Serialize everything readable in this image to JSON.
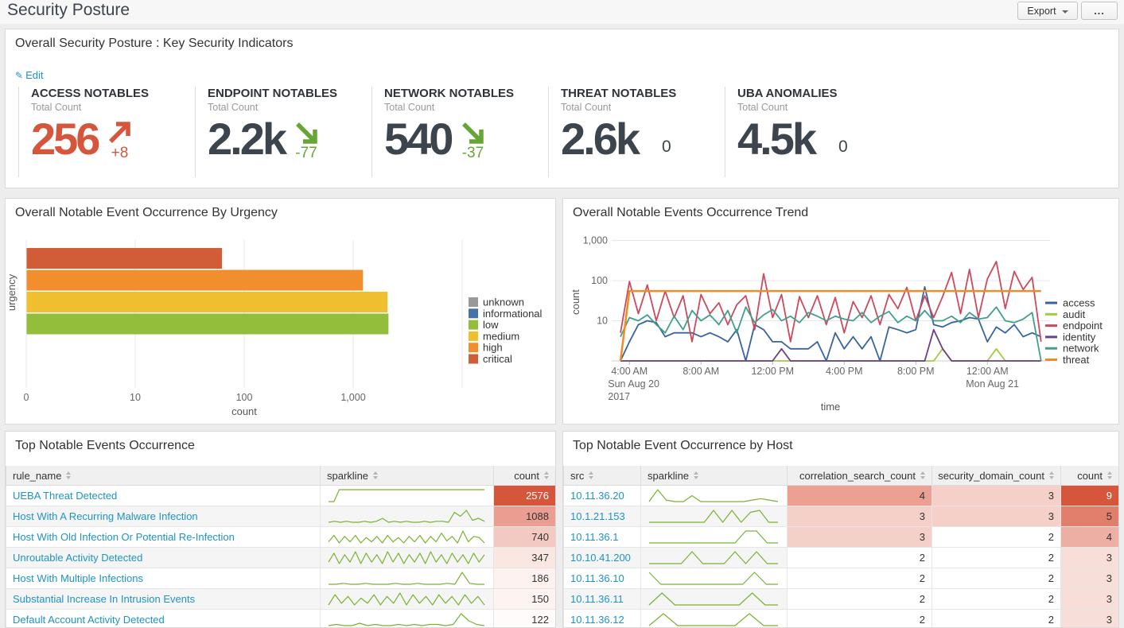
{
  "page": {
    "title": "Security Posture",
    "export_label": "Export",
    "more_label": "..."
  },
  "kpi_panel": {
    "title": "Overall Security Posture : Key Security Indicators",
    "edit_label": "Edit",
    "kpis": [
      {
        "label": "ACCESS NOTABLES",
        "sublabel": "Total Count",
        "value": "256",
        "value_color": "#d6563c",
        "delta": "+8",
        "trend": "up",
        "trend_color": "#d6563c"
      },
      {
        "label": "ENDPOINT NOTABLES",
        "sublabel": "Total Count",
        "value": "2.2k",
        "value_color": "#3c444d",
        "delta": "-77",
        "trend": "down",
        "trend_color": "#65a637"
      },
      {
        "label": "NETWORK NOTABLES",
        "sublabel": "Total Count",
        "value": "540",
        "value_color": "#3c444d",
        "delta": "-37",
        "trend": "down",
        "trend_color": "#65a637"
      },
      {
        "label": "THREAT NOTABLES",
        "sublabel": "Total Count",
        "value": "2.6k",
        "value_color": "#3c444d",
        "delta": "0",
        "trend": "none",
        "trend_color": "#3c444d"
      },
      {
        "label": "UBA ANOMALIES",
        "sublabel": "Total Count",
        "value": "4.5k",
        "value_color": "#3c444d",
        "delta": "0",
        "trend": "none",
        "trend_color": "#3c444d"
      }
    ]
  },
  "chart_data": [
    {
      "id": "urgency_bar",
      "type": "bar",
      "orientation": "horizontal",
      "title": "Overall Notable Event Occurrence By Urgency",
      "xlabel": "count",
      "ylabel": "urgency",
      "x_scale": "log",
      "x_ticks": [
        {
          "label": "0",
          "decade": 0
        },
        {
          "label": "10",
          "decade": 1
        },
        {
          "label": "100",
          "decade": 2
        },
        {
          "label": "1,000",
          "decade": 3
        }
      ],
      "bars_order": [
        "critical",
        "high",
        "medium",
        "low"
      ],
      "series": [
        {
          "name": "unknown",
          "value": 0,
          "color": "#999999"
        },
        {
          "name": "informational",
          "value": 0,
          "color": "#4573a7"
        },
        {
          "name": "low",
          "value": 2090,
          "color": "#93be3c"
        },
        {
          "name": "medium",
          "value": 2050,
          "color": "#f0bf30"
        },
        {
          "name": "high",
          "value": 1220,
          "color": "#f18f2e"
        },
        {
          "name": "critical",
          "value": 62,
          "color": "#d05c38"
        }
      ]
    },
    {
      "id": "trend",
      "type": "line",
      "title": "Overall Notable Events Occurrence Trend",
      "xlabel": "time",
      "ylabel": "count",
      "y_scale": "log",
      "y_ticks": [
        {
          "label": "10",
          "value": 10
        },
        {
          "label": "100",
          "value": 100
        },
        {
          "label": "1,000",
          "value": 1000
        }
      ],
      "x_ticks": [
        {
          "label": "4:00 AM",
          "sub": [
            "Sun Aug 20",
            "2017"
          ],
          "index": 1
        },
        {
          "label": "8:00 AM",
          "sub": [],
          "index": 9
        },
        {
          "label": "12:00 PM",
          "sub": [],
          "index": 17
        },
        {
          "label": "4:00 PM",
          "sub": [],
          "index": 25
        },
        {
          "label": "8:00 PM",
          "sub": [],
          "index": 33
        },
        {
          "label": "12:00 AM",
          "sub": [
            "Mon Aug 21"
          ],
          "index": 41
        }
      ],
      "series": [
        {
          "name": "access",
          "color": "#3863a0",
          "values": [
            1,
            3,
            8,
            10,
            9,
            4,
            5,
            5,
            5,
            4,
            5,
            4,
            3,
            6,
            1,
            8,
            6,
            3,
            3,
            2,
            2,
            2,
            3,
            1,
            5,
            2,
            4,
            2,
            4,
            1,
            7,
            6,
            5,
            6,
            70,
            8,
            7,
            9,
            10,
            12,
            11,
            3,
            7,
            5,
            8,
            4,
            5,
            4
          ]
        },
        {
          "name": "audit",
          "color": "#a2cc3e",
          "values": [
            1,
            1,
            1,
            1,
            1,
            1,
            1,
            1,
            1,
            1,
            1,
            1,
            1,
            1,
            1,
            1,
            1,
            1,
            1,
            1,
            1,
            1,
            1,
            1,
            1,
            1,
            1,
            1,
            1,
            1,
            1,
            1,
            1,
            1,
            1,
            1,
            2,
            1,
            1,
            1,
            1,
            1,
            2,
            1,
            1,
            1,
            1,
            1
          ]
        },
        {
          "name": "endpoint",
          "color": "#cc4a5d",
          "values": [
            5,
            95,
            15,
            78,
            10,
            55,
            12,
            42,
            3,
            45,
            15,
            28,
            8,
            25,
            42,
            6,
            148,
            12,
            45,
            3,
            40,
            12,
            42,
            8,
            38,
            5,
            30,
            12,
            42,
            8,
            45,
            20,
            68,
            10,
            42,
            12,
            40,
            160,
            15,
            190,
            12,
            110,
            300,
            20,
            170,
            60,
            120,
            3
          ]
        },
        {
          "name": "identity",
          "color": "#6b4086",
          "values": [
            1,
            1,
            1,
            1,
            1,
            1,
            1,
            1,
            1,
            1,
            1,
            1,
            1,
            1,
            1,
            1,
            1,
            1,
            2,
            1,
            1,
            1,
            1,
            1,
            1,
            1,
            1,
            1,
            1,
            1,
            1,
            1,
            1,
            1,
            1,
            6,
            2,
            1,
            1,
            1,
            1,
            1,
            1,
            1,
            1,
            1,
            1,
            1
          ]
        },
        {
          "name": "network",
          "color": "#3fa08c",
          "values": [
            4,
            12,
            10,
            14,
            8,
            5,
            13,
            6,
            18,
            10,
            14,
            8,
            18,
            5,
            22,
            9,
            14,
            19,
            10,
            13,
            9,
            16,
            13,
            10,
            13,
            11,
            10,
            16,
            9,
            13,
            17,
            9,
            13,
            10,
            18,
            10,
            10,
            13,
            9,
            16,
            11,
            12,
            22,
            10,
            9,
            11,
            16,
            1
          ]
        },
        {
          "name": "threat",
          "color": "#ef8d24",
          "values": [
            1,
            55,
            55,
            55,
            55,
            55,
            55,
            55,
            55,
            55,
            55,
            55,
            55,
            55,
            55,
            55,
            55,
            55,
            55,
            55,
            55,
            55,
            55,
            55,
            55,
            55,
            55,
            55,
            55,
            55,
            55,
            55,
            55,
            55,
            55,
            55,
            55,
            55,
            55,
            55,
            55,
            55,
            55,
            55,
            55,
            55,
            55,
            55
          ]
        }
      ]
    }
  ],
  "events_table": {
    "title": "Top Notable Events Occurrence",
    "columns": [
      "rule_name",
      "sparkline",
      "count"
    ],
    "spark_color": "#79b232",
    "rows": [
      {
        "rule_name": "UEBA Threat Detected",
        "spark": [
          1,
          1,
          20,
          20,
          20,
          20,
          20,
          20,
          20,
          20,
          20,
          20,
          20,
          20,
          20,
          20,
          20,
          20,
          20,
          20,
          20,
          20,
          20,
          20,
          20,
          20,
          20,
          20,
          20,
          20
        ],
        "count": {
          "value": "2576",
          "bg": "#d6563c",
          "fg": "#ffffff"
        }
      },
      {
        "rule_name": "Host With A Recurring Malware Infection",
        "spark": [
          2,
          3,
          2,
          3,
          2,
          2,
          3,
          2,
          3,
          6,
          2,
          3,
          2,
          3,
          2,
          2,
          3,
          2,
          3,
          3,
          2,
          12,
          8,
          14,
          4,
          6,
          3
        ],
        "count": {
          "value": "1088",
          "bg": "#ea9d90"
        }
      },
      {
        "rule_name": "Host With Old Infection Or Potential Re-Infection",
        "spark": [
          4,
          10,
          3,
          9,
          4,
          10,
          3,
          8,
          4,
          9,
          3,
          10,
          4,
          8,
          3,
          9,
          4,
          10,
          3,
          9,
          4,
          12,
          5,
          9,
          3,
          14,
          4,
          9,
          8,
          3
        ],
        "count": {
          "value": "740",
          "bg": "#f3cac2"
        }
      },
      {
        "rule_name": "Unroutable Activity Detected",
        "spark": [
          5,
          11,
          4,
          10,
          5,
          12,
          4,
          11,
          5,
          10,
          4,
          12,
          5,
          11,
          4,
          10,
          5,
          11,
          4,
          12,
          5,
          10,
          4,
          11,
          5,
          10,
          4,
          11,
          5,
          10
        ],
        "count": {
          "value": "347",
          "bg": "#fae7e2"
        }
      },
      {
        "rule_name": "Host With Multiple Infections",
        "spark": [
          2,
          2,
          3,
          2,
          2,
          3,
          2,
          2,
          2,
          3,
          2,
          2,
          3,
          2,
          2,
          2,
          3,
          2,
          14,
          3,
          2,
          2
        ],
        "count": {
          "value": "186",
          "bg": "#fdf2ef"
        }
      },
      {
        "rule_name": "Substantial Increase In Intrusion Events",
        "spark": [
          3,
          9,
          4,
          8,
          3,
          7,
          4,
          9,
          3,
          8,
          4,
          10,
          3,
          9,
          4,
          8,
          3,
          9,
          4,
          8,
          3,
          9,
          4,
          8,
          3
        ],
        "count": {
          "value": "150",
          "bg": "#fdf4f2"
        }
      },
      {
        "rule_name": "Default Account Activity Detected",
        "spark": [
          2,
          3,
          2,
          2,
          4,
          2,
          3,
          2,
          2,
          3,
          2,
          3,
          2,
          3,
          3,
          2,
          3,
          12,
          6,
          3,
          2
        ],
        "count": {
          "value": "122",
          "bg": "#fefbfa"
        }
      }
    ]
  },
  "host_table": {
    "title": "Top Notable Event Occurrence by Host",
    "columns": [
      "src",
      "sparkline",
      "correlation_search_count",
      "security_domain_count",
      "count"
    ],
    "spark_color": "#79b232",
    "rows": [
      {
        "src": "10.11.36.20",
        "spark": [
          1,
          9,
          2,
          1,
          1,
          5,
          1,
          1,
          1,
          1,
          1,
          1,
          2,
          3,
          2,
          1
        ],
        "correlation_search_count": {
          "value": "4",
          "bg": "#eba092"
        },
        "security_domain_count": {
          "value": "3",
          "bg": "#f5d0c8"
        },
        "count": {
          "value": "9",
          "bg": "#d6563c",
          "fg": "#ffffff"
        }
      },
      {
        "src": "10.1.21.153",
        "spark": [
          1,
          1,
          1,
          1,
          1,
          1,
          1,
          7,
          1,
          7,
          1,
          6,
          7,
          1,
          1
        ],
        "correlation_search_count": {
          "value": "3",
          "bg": "#f5d0c8"
        },
        "security_domain_count": {
          "value": "3",
          "bg": "#f5d0c8"
        },
        "count": {
          "value": "5",
          "bg": "#e17f6c"
        }
      },
      {
        "src": "10.11.36.1",
        "spark": [
          1,
          1,
          1,
          1,
          1,
          1,
          1,
          1,
          1,
          7,
          7,
          1,
          1
        ],
        "correlation_search_count": {
          "value": "3",
          "bg": "#f5d0c8"
        },
        "security_domain_count": {
          "value": "2",
          "bg": "#ffffff"
        },
        "count": {
          "value": "4",
          "bg": "#edafa4"
        }
      },
      {
        "src": "10.10.41.200",
        "spark": [
          1,
          1,
          1,
          1,
          6,
          1,
          1,
          1,
          6,
          1,
          6,
          1,
          1
        ],
        "correlation_search_count": {
          "value": "2",
          "bg": "#ffffff"
        },
        "security_domain_count": {
          "value": "2",
          "bg": "#ffffff"
        },
        "count": {
          "value": "3",
          "bg": "#f8ded8"
        }
      },
      {
        "src": "10.11.36.10",
        "spark": [
          6,
          1,
          1,
          1,
          1,
          1,
          1,
          1,
          1,
          6,
          1,
          1
        ],
        "correlation_search_count": {
          "value": "2",
          "bg": "#ffffff"
        },
        "security_domain_count": {
          "value": "2",
          "bg": "#ffffff"
        },
        "count": {
          "value": "3",
          "bg": "#f8ded8"
        }
      },
      {
        "src": "10.11.36.11",
        "spark": [
          1,
          6,
          1,
          1,
          1,
          1,
          1,
          1,
          6,
          1,
          1
        ],
        "correlation_search_count": {
          "value": "2",
          "bg": "#ffffff"
        },
        "security_domain_count": {
          "value": "2",
          "bg": "#ffffff"
        },
        "count": {
          "value": "3",
          "bg": "#f8ded8"
        }
      },
      {
        "src": "10.11.36.12",
        "spark": [
          1,
          6,
          1,
          1,
          1,
          1,
          1,
          6,
          1,
          1
        ],
        "correlation_search_count": {
          "value": "2",
          "bg": "#ffffff"
        },
        "security_domain_count": {
          "value": "2",
          "bg": "#ffffff"
        },
        "count": {
          "value": "3",
          "bg": "#f8ded8"
        }
      }
    ]
  }
}
